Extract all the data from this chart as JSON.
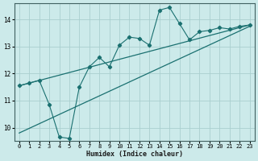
{
  "xlabel": "Humidex (Indice chaleur)",
  "background_color": "#cceaea",
  "grid_color": "#aacfcf",
  "line_color": "#1a7070",
  "xlim": [
    -0.5,
    23.5
  ],
  "ylim": [
    9.5,
    14.6
  ],
  "yticks": [
    10,
    11,
    12,
    13,
    14
  ],
  "xticks": [
    0,
    1,
    2,
    3,
    4,
    5,
    6,
    7,
    8,
    9,
    10,
    11,
    12,
    13,
    14,
    15,
    16,
    17,
    18,
    19,
    20,
    21,
    22,
    23
  ],
  "series1_x": [
    0,
    1,
    2,
    3,
    4,
    5,
    6,
    7,
    8,
    9,
    10,
    11,
    12,
    13,
    14,
    15,
    16,
    17,
    18,
    19,
    20,
    21,
    22,
    23
  ],
  "series1_y": [
    11.55,
    11.65,
    11.75,
    10.85,
    9.65,
    9.6,
    11.5,
    12.25,
    12.6,
    12.25,
    13.05,
    13.35,
    13.3,
    13.05,
    14.35,
    14.45,
    13.85,
    13.25,
    13.55,
    13.6,
    13.7,
    13.65,
    13.75,
    13.8
  ],
  "line1_x": [
    0,
    23
  ],
  "line1_y": [
    11.55,
    13.8
  ],
  "line2_x": [
    0,
    23
  ],
  "line2_y": [
    9.8,
    13.75
  ]
}
